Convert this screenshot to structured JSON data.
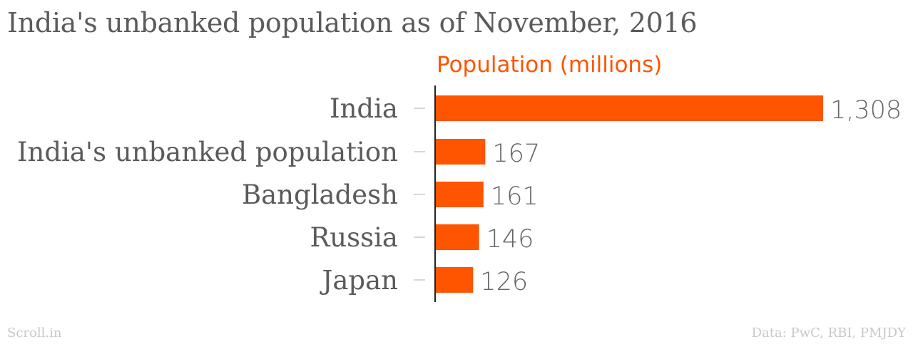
{
  "title": "India's unbanked population as of November, 2016",
  "chart_data": {
    "type": "bar",
    "orientation": "horizontal",
    "categories": [
      "India",
      "India's unbanked population",
      "Bangladesh",
      "Russia",
      "Japan"
    ],
    "series": [
      {
        "name": "Population (millions)",
        "values": [
          1308,
          167,
          161,
          146,
          126
        ]
      }
    ],
    "value_labels": [
      "1,308",
      "167",
      "161",
      "146",
      "126"
    ],
    "bar_color": "#ff5400",
    "xlim": [
      0,
      1308
    ],
    "grid": false,
    "legend": "top"
  },
  "footer": {
    "source": "Scroll.in",
    "credits": "Data: PwC, RBI, PMJDY"
  }
}
